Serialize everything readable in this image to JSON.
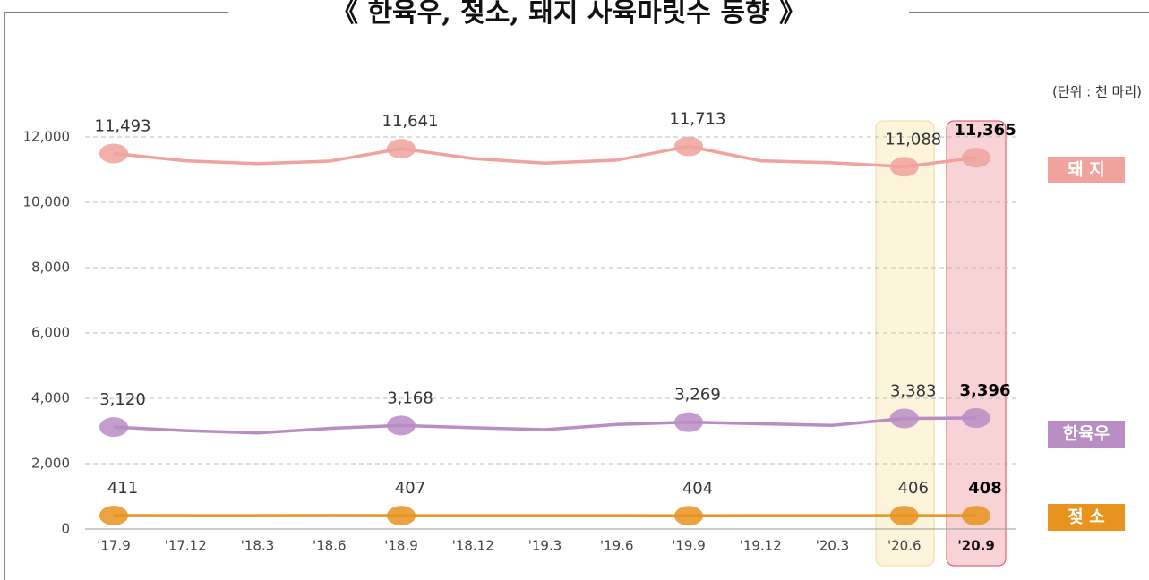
{
  "chart_data": {
    "type": "line",
    "title": "《 한육우, 젖소, 돼지 사육마릿수 동향 》",
    "unit": "(단위 : 천 마리)",
    "categories": [
      "'17.9",
      "'17.12",
      "'18.3",
      "'18.6",
      "'18.9",
      "'18.12",
      "'19.3",
      "'19.6",
      "'19.9",
      "'19.12",
      "'20.3",
      "'20.6",
      "'20.9"
    ],
    "ylim": [
      0,
      12500
    ],
    "yticks": [
      {
        "value": 0,
        "label": "0"
      },
      {
        "value": 2000,
        "label": "2,000"
      },
      {
        "value": 4000,
        "label": "4,000"
      },
      {
        "value": 6000,
        "label": "6,000"
      },
      {
        "value": 8000,
        "label": "8,000"
      },
      {
        "value": 10000,
        "label": "10,000"
      },
      {
        "value": 12000,
        "label": "12,000"
      }
    ],
    "grid": true,
    "series": [
      {
        "name": "돼 지",
        "color": "#f0a29c",
        "values": [
          11493,
          11270,
          11180,
          11260,
          11641,
          11340,
          11200,
          11290,
          11713,
          11270,
          11210,
          11088,
          11365
        ],
        "value_labels": [
          "11,493",
          null,
          null,
          null,
          "11,641",
          null,
          null,
          null,
          "11,713",
          null,
          null,
          "11,088",
          "11,365"
        ]
      },
      {
        "name": "한육우",
        "color": "#b98cc4",
        "values": [
          3120,
          3010,
          2940,
          3080,
          3168,
          3100,
          3040,
          3200,
          3269,
          3220,
          3170,
          3383,
          3396
        ],
        "value_labels": [
          "3,120",
          null,
          null,
          null,
          "3,168",
          null,
          null,
          null,
          "3,269",
          null,
          null,
          "3,383",
          "3,396"
        ]
      },
      {
        "name": "젖 소",
        "color": "#e8921f",
        "values": [
          411,
          409,
          408,
          410,
          407,
          408,
          407,
          406,
          404,
          407,
          408,
          406,
          408
        ],
        "value_labels": [
          "411",
          null,
          null,
          null,
          "407",
          null,
          null,
          null,
          "404",
          null,
          null,
          "406",
          "408"
        ]
      }
    ]
  }
}
